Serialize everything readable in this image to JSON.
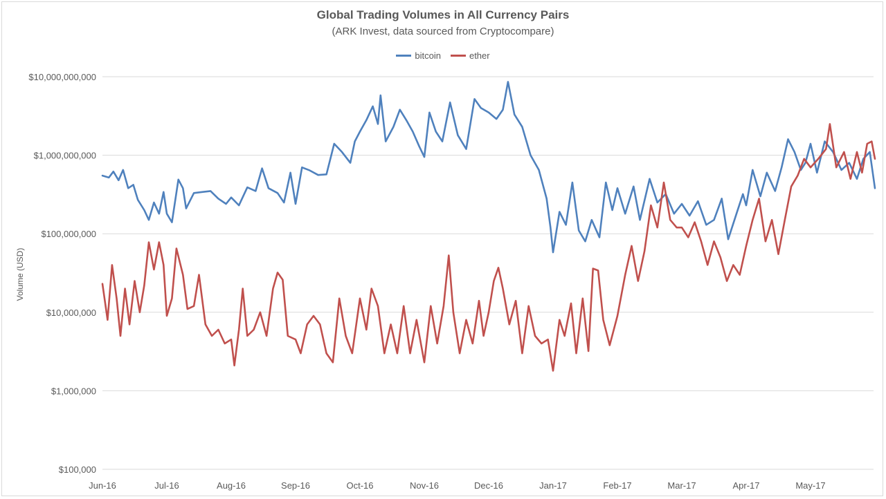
{
  "chart_data": {
    "type": "line",
    "title": "Global Trading Volumes in All Currency Pairs",
    "subtitle": "(ARK Invest, data sourced from Cryptocompare)",
    "ylabel": "Volume (USD)",
    "xlabel": "",
    "y_scale": "log",
    "ylim": [
      100000,
      10000000000
    ],
    "y_ticks": [
      {
        "value": 10000000000,
        "label": "$10,000,000,000"
      },
      {
        "value": 1000000000,
        "label": "$1,000,000,000"
      },
      {
        "value": 100000000,
        "label": "$100,000,000"
      },
      {
        "value": 10000000,
        "label": "$10,000,000"
      },
      {
        "value": 1000000,
        "label": "$1,000,000"
      },
      {
        "value": 100000,
        "label": "$100,000"
      }
    ],
    "x_ticks": [
      "Jun-16",
      "Jul-16",
      "Aug-16",
      "Sep-16",
      "Oct-16",
      "Nov-16",
      "Dec-16",
      "Jan-17",
      "Feb-17",
      "Mar-17",
      "Apr-17",
      "May-17"
    ],
    "x_range": [
      "Jun-16",
      "end of May-17"
    ],
    "grid": "horizontal",
    "legend_position": "top-center",
    "series": [
      {
        "name": "bitcoin",
        "color": "#4f81bd",
        "points": [
          [
            "Jun-16",
            550000000
          ],
          [
            "Jun-16 +0.10",
            520000000
          ],
          [
            "Jun-16 +0.17",
            620000000
          ],
          [
            "Jun-16 +0.25",
            480000000
          ],
          [
            "Jun-16 +0.32",
            650000000
          ],
          [
            "Jun-16 +0.40",
            380000000
          ],
          [
            "Jun-16 +0.48",
            420000000
          ],
          [
            "Jun-16 +0.55",
            270000000
          ],
          [
            "Jun-16 +0.65",
            200000000
          ],
          [
            "Jun-16 +0.72",
            150000000
          ],
          [
            "Jun-16 +0.80",
            250000000
          ],
          [
            "Jun-16 +0.88",
            180000000
          ],
          [
            "Jun-16 +0.95",
            340000000
          ],
          [
            "Jul-16",
            180000000
          ],
          [
            "Jul-16 +0.08",
            140000000
          ],
          [
            "Jul-16 +0.18",
            490000000
          ],
          [
            "Jul-16 +0.25",
            380000000
          ],
          [
            "Jul-16 +0.30",
            210000000
          ],
          [
            "Jul-16 +0.42",
            330000000
          ],
          [
            "Jul-16 +0.55",
            340000000
          ],
          [
            "Jul-16 +0.68",
            350000000
          ],
          [
            "Jul-16 +0.80",
            280000000
          ],
          [
            "Jul-16 +0.92",
            240000000
          ],
          [
            "Aug-16",
            290000000
          ],
          [
            "Aug-16 +0.12",
            230000000
          ],
          [
            "Aug-16 +0.25",
            390000000
          ],
          [
            "Aug-16 +0.38",
            350000000
          ],
          [
            "Aug-16 +0.48",
            680000000
          ],
          [
            "Aug-16 +0.58",
            380000000
          ],
          [
            "Aug-16 +0.72",
            330000000
          ],
          [
            "Aug-16 +0.82",
            250000000
          ],
          [
            "Aug-16 +0.92",
            600000000
          ],
          [
            "Sep-16",
            240000000
          ],
          [
            "Sep-16 +0.10",
            700000000
          ],
          [
            "Sep-16 +0.22",
            640000000
          ],
          [
            "Sep-16 +0.35",
            560000000
          ],
          [
            "Sep-16 +0.48",
            570000000
          ],
          [
            "Sep-16 +0.60",
            1400000000
          ],
          [
            "Sep-16 +0.72",
            1100000000
          ],
          [
            "Sep-16 +0.85",
            800000000
          ],
          [
            "Sep-16 +0.92",
            1500000000
          ],
          [
            "Oct-16",
            2000000000
          ],
          [
            "Oct-16 +0.10",
            2800000000
          ],
          [
            "Oct-16 +0.20",
            4200000000
          ],
          [
            "Oct-16 +0.28",
            2500000000
          ],
          [
            "Oct-16 +0.32",
            5800000000
          ],
          [
            "Oct-16 +0.40",
            1500000000
          ],
          [
            "Oct-16 +0.52",
            2300000000
          ],
          [
            "Oct-16 +0.62",
            3800000000
          ],
          [
            "Oct-16 +0.72",
            2800000000
          ],
          [
            "Oct-16 +0.82",
            2000000000
          ],
          [
            "Oct-16 +0.92",
            1300000000
          ],
          [
            "Nov-16",
            950000000
          ],
          [
            "Nov-16 +0.08",
            3500000000
          ],
          [
            "Nov-16 +0.18",
            2000000000
          ],
          [
            "Nov-16 +0.28",
            1500000000
          ],
          [
            "Nov-16 +0.40",
            4700000000
          ],
          [
            "Nov-16 +0.52",
            1800000000
          ],
          [
            "Nov-16 +0.65",
            1200000000
          ],
          [
            "Nov-16 +0.78",
            5200000000
          ],
          [
            "Nov-16 +0.88",
            4000000000
          ],
          [
            "Dec-16",
            3500000000
          ],
          [
            "Dec-16 +0.12",
            2900000000
          ],
          [
            "Dec-16 +0.22",
            3800000000
          ],
          [
            "Dec-16 +0.30",
            8600000000
          ],
          [
            "Dec-16 +0.40",
            3300000000
          ],
          [
            "Dec-16 +0.52",
            2300000000
          ],
          [
            "Dec-16 +0.65",
            1000000000
          ],
          [
            "Dec-16 +0.78",
            650000000
          ],
          [
            "Dec-16 +0.90",
            280000000
          ],
          [
            "Dec-16 +0.96",
            120000000
          ],
          [
            "Jan-17",
            58000000
          ],
          [
            "Jan-17 +0.10",
            190000000
          ],
          [
            "Jan-17 +0.20",
            130000000
          ],
          [
            "Jan-17 +0.30",
            450000000
          ],
          [
            "Jan-17 +0.40",
            110000000
          ],
          [
            "Jan-17 +0.50",
            80000000
          ],
          [
            "Jan-17 +0.60",
            150000000
          ],
          [
            "Jan-17 +0.72",
            90000000
          ],
          [
            "Jan-17 +0.82",
            450000000
          ],
          [
            "Jan-17 +0.92",
            200000000
          ],
          [
            "Feb-17",
            380000000
          ],
          [
            "Feb-17 +0.12",
            180000000
          ],
          [
            "Feb-17 +0.25",
            400000000
          ],
          [
            "Feb-17 +0.35",
            150000000
          ],
          [
            "Feb-17 +0.50",
            500000000
          ],
          [
            "Feb-17 +0.62",
            250000000
          ],
          [
            "Feb-17 +0.75",
            320000000
          ],
          [
            "Feb-17 +0.88",
            180000000
          ],
          [
            "Mar-17",
            240000000
          ],
          [
            "Mar-17 +0.12",
            170000000
          ],
          [
            "Mar-17 +0.25",
            260000000
          ],
          [
            "Mar-17 +0.38",
            130000000
          ],
          [
            "Mar-17 +0.50",
            150000000
          ],
          [
            "Mar-17 +0.62",
            280000000
          ],
          [
            "Mar-17 +0.72",
            85000000
          ],
          [
            "Mar-17 +0.85",
            180000000
          ],
          [
            "Mar-17 +0.95",
            320000000
          ],
          [
            "Apr-17",
            230000000
          ],
          [
            "Apr-17 +0.10",
            650000000
          ],
          [
            "Apr-17 +0.22",
            300000000
          ],
          [
            "Apr-17 +0.32",
            600000000
          ],
          [
            "Apr-17 +0.45",
            350000000
          ],
          [
            "Apr-17 +0.55",
            700000000
          ],
          [
            "Apr-17 +0.65",
            1600000000
          ],
          [
            "Apr-17 +0.75",
            1100000000
          ],
          [
            "Apr-17 +0.85",
            650000000
          ],
          [
            "Apr-17 +0.92",
            800000000
          ],
          [
            "May-17",
            1400000000
          ],
          [
            "May-17 +0.10",
            600000000
          ],
          [
            "May-17 +0.22",
            1500000000
          ],
          [
            "May-17 +0.35",
            1100000000
          ],
          [
            "May-17 +0.48",
            650000000
          ],
          [
            "May-17 +0.60",
            800000000
          ],
          [
            "May-17 +0.72",
            500000000
          ],
          [
            "May-17 +0.82",
            900000000
          ],
          [
            "May-17 +0.92",
            1100000000
          ],
          [
            "May-17 +1.00",
            380000000
          ]
        ]
      },
      {
        "name": "ether",
        "color": "#c0504d",
        "points": [
          [
            "Jun-16",
            23000000
          ],
          [
            "Jun-16 +0.08",
            8000000
          ],
          [
            "Jun-16 +0.15",
            40000000
          ],
          [
            "Jun-16 +0.22",
            15000000
          ],
          [
            "Jun-16 +0.28",
            5000000
          ],
          [
            "Jun-16 +0.35",
            20000000
          ],
          [
            "Jun-16 +0.42",
            7000000
          ],
          [
            "Jun-16 +0.50",
            25000000
          ],
          [
            "Jun-16 +0.58",
            10000000
          ],
          [
            "Jun-16 +0.65",
            22000000
          ],
          [
            "Jun-16 +0.72",
            78000000
          ],
          [
            "Jun-16 +0.80",
            35000000
          ],
          [
            "Jun-16 +0.88",
            78000000
          ],
          [
            "Jun-16 +0.95",
            40000000
          ],
          [
            "Jul-16",
            9000000
          ],
          [
            "Jul-16 +0.08",
            15000000
          ],
          [
            "Jul-16 +0.15",
            65000000
          ],
          [
            "Jul-16 +0.25",
            30000000
          ],
          [
            "Jul-16 +0.32",
            11000000
          ],
          [
            "Jul-16 +0.42",
            12000000
          ],
          [
            "Jul-16 +0.50",
            30000000
          ],
          [
            "Jul-16 +0.60",
            7000000
          ],
          [
            "Jul-16 +0.70",
            5000000
          ],
          [
            "Jul-16 +0.80",
            6000000
          ],
          [
            "Jul-16 +0.90",
            4000000
          ],
          [
            "Aug-16",
            4500000
          ],
          [
            "Aug-16 +0.05",
            2100000
          ],
          [
            "Aug-16 +0.12",
            6000000
          ],
          [
            "Aug-16 +0.18",
            20000000
          ],
          [
            "Aug-16 +0.25",
            5000000
          ],
          [
            "Aug-16 +0.35",
            6000000
          ],
          [
            "Aug-16 +0.45",
            10000000
          ],
          [
            "Aug-16 +0.55",
            5000000
          ],
          [
            "Aug-16 +0.65",
            20000000
          ],
          [
            "Aug-16 +0.72",
            32000000
          ],
          [
            "Aug-16 +0.80",
            26000000
          ],
          [
            "Aug-16 +0.88",
            5000000
          ],
          [
            "Sep-16",
            4500000
          ],
          [
            "Sep-16 +0.08",
            3000000
          ],
          [
            "Sep-16 +0.18",
            7000000
          ],
          [
            "Sep-16 +0.28",
            9000000
          ],
          [
            "Sep-16 +0.38",
            7000000
          ],
          [
            "Sep-16 +0.48",
            3000000
          ],
          [
            "Sep-16 +0.58",
            2300000
          ],
          [
            "Sep-16 +0.68",
            15000000
          ],
          [
            "Sep-16 +0.78",
            5000000
          ],
          [
            "Sep-16 +0.88",
            3000000
          ],
          [
            "Oct-16",
            15000000
          ],
          [
            "Oct-16 +0.10",
            6000000
          ],
          [
            "Oct-16 +0.18",
            20000000
          ],
          [
            "Oct-16 +0.28",
            12000000
          ],
          [
            "Oct-16 +0.38",
            3000000
          ],
          [
            "Oct-16 +0.48",
            7000000
          ],
          [
            "Oct-16 +0.58",
            3000000
          ],
          [
            "Oct-16 +0.68",
            12000000
          ],
          [
            "Oct-16 +0.78",
            3000000
          ],
          [
            "Oct-16 +0.88",
            8000000
          ],
          [
            "Nov-16",
            2300000
          ],
          [
            "Nov-16 +0.10",
            12000000
          ],
          [
            "Nov-16 +0.20",
            4000000
          ],
          [
            "Nov-16 +0.30",
            12000000
          ],
          [
            "Nov-16 +0.38",
            53000000
          ],
          [
            "Nov-16 +0.45",
            10000000
          ],
          [
            "Nov-16 +0.55",
            3000000
          ],
          [
            "Nov-16 +0.65",
            8000000
          ],
          [
            "Nov-16 +0.75",
            4000000
          ],
          [
            "Nov-16 +0.85",
            14000000
          ],
          [
            "Nov-16 +0.92",
            5000000
          ],
          [
            "Dec-16",
            10000000
          ],
          [
            "Dec-16 +0.08",
            25000000
          ],
          [
            "Dec-16 +0.15",
            37000000
          ],
          [
            "Dec-16 +0.22",
            20000000
          ],
          [
            "Dec-16 +0.32",
            7000000
          ],
          [
            "Dec-16 +0.42",
            14000000
          ],
          [
            "Dec-16 +0.52",
            3000000
          ],
          [
            "Dec-16 +0.62",
            12000000
          ],
          [
            "Dec-16 +0.72",
            5000000
          ],
          [
            "Dec-16 +0.82",
            4000000
          ],
          [
            "Dec-16 +0.92",
            4500000
          ],
          [
            "Jan-17",
            1800000
          ],
          [
            "Jan-17 +0.10",
            8000000
          ],
          [
            "Jan-17 +0.18",
            5000000
          ],
          [
            "Jan-17 +0.28",
            13000000
          ],
          [
            "Jan-17 +0.36",
            3000000
          ],
          [
            "Jan-17 +0.46",
            15000000
          ],
          [
            "Jan-17 +0.55",
            3200000
          ],
          [
            "Jan-17 +0.62",
            36000000
          ],
          [
            "Jan-17 +0.70",
            34000000
          ],
          [
            "Jan-17 +0.78",
            8000000
          ],
          [
            "Jan-17 +0.88",
            3800000
          ],
          [
            "Feb-17",
            9000000
          ],
          [
            "Feb-17 +0.12",
            30000000
          ],
          [
            "Feb-17 +0.22",
            70000000
          ],
          [
            "Feb-17 +0.32",
            25000000
          ],
          [
            "Feb-17 +0.42",
            60000000
          ],
          [
            "Feb-17 +0.52",
            230000000
          ],
          [
            "Feb-17 +0.62",
            120000000
          ],
          [
            "Feb-17 +0.72",
            450000000
          ],
          [
            "Feb-17 +0.82",
            150000000
          ],
          [
            "Feb-17 +0.92",
            120000000
          ],
          [
            "Mar-17",
            120000000
          ],
          [
            "Mar-17 +0.10",
            90000000
          ],
          [
            "Mar-17 +0.20",
            140000000
          ],
          [
            "Mar-17 +0.30",
            80000000
          ],
          [
            "Mar-17 +0.40",
            40000000
          ],
          [
            "Mar-17 +0.50",
            80000000
          ],
          [
            "Mar-17 +0.60",
            50000000
          ],
          [
            "Mar-17 +0.70",
            25000000
          ],
          [
            "Mar-17 +0.80",
            40000000
          ],
          [
            "Mar-17 +0.90",
            30000000
          ],
          [
            "Apr-17",
            70000000
          ],
          [
            "Apr-17 +0.10",
            150000000
          ],
          [
            "Apr-17 +0.20",
            280000000
          ],
          [
            "Apr-17 +0.30",
            80000000
          ],
          [
            "Apr-17 +0.40",
            150000000
          ],
          [
            "Apr-17 +0.50",
            55000000
          ],
          [
            "Apr-17 +0.60",
            150000000
          ],
          [
            "Apr-17 +0.70",
            400000000
          ],
          [
            "Apr-17 +0.80",
            550000000
          ],
          [
            "Apr-17 +0.90",
            900000000
          ],
          [
            "May-17",
            700000000
          ],
          [
            "May-17 +0.12",
            900000000
          ],
          [
            "May-17 +0.24",
            1200000000
          ],
          [
            "May-17 +0.30",
            2500000000
          ],
          [
            "May-17 +0.40",
            700000000
          ],
          [
            "May-17 +0.52",
            1100000000
          ],
          [
            "May-17 +0.62",
            500000000
          ],
          [
            "May-17 +0.72",
            1100000000
          ],
          [
            "May-17 +0.80",
            600000000
          ],
          [
            "May-17 +0.88",
            1400000000
          ],
          [
            "May-17 +0.95",
            1500000000
          ],
          [
            "May-17 +1.00",
            900000000
          ]
        ]
      }
    ]
  }
}
